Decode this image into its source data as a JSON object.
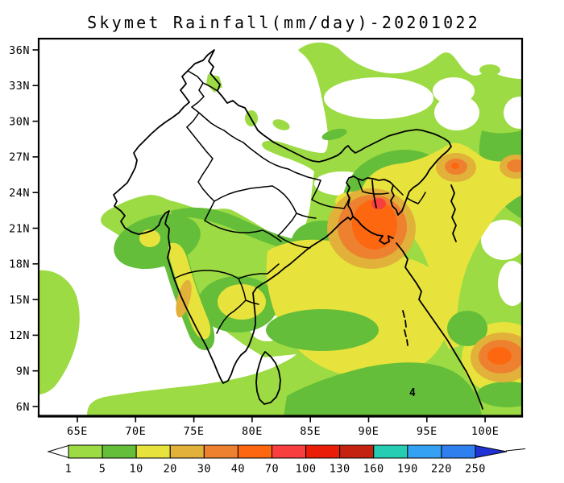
{
  "title": "Skymet Rainfall(mm/day)-20201022",
  "map": {
    "y_axis_labels": [
      "36N",
      "33N",
      "30N",
      "27N",
      "24N",
      "21N",
      "18N",
      "15N",
      "12N",
      "9N",
      "6N"
    ],
    "x_axis_labels": [
      "65E",
      "70E",
      "75E",
      "80E",
      "85E",
      "90E",
      "95E",
      "100E"
    ],
    "contour_label": "4"
  },
  "colorbar": {
    "tick_labels": [
      "1",
      "5",
      "10",
      "20",
      "30",
      "40",
      "70",
      "100",
      "130",
      "160",
      "190",
      "220",
      "250"
    ],
    "segment_colors": [
      "#9CDB43",
      "#64BE39",
      "#E8E33C",
      "#E2B13A",
      "#EE8130",
      "#FC670F",
      "#F93E40",
      "#EA1D08",
      "#C42311",
      "#26CDB2",
      "#35A1F2",
      "#2F7FEF"
    ],
    "under_arrow_color": "#FFFFFF",
    "over_arrow_color": "#2133D5"
  },
  "palette": {
    "white": "#FFFFFF",
    "light_green": "#9CDB43",
    "green": "#64BE39",
    "yellow": "#E8E33C",
    "mustard": "#E2B13A",
    "orange": "#EE8130",
    "deep_orange": "#FC670F",
    "red_pink": "#F93E40",
    "line": "#000000"
  },
  "chart_data": {
    "type": "heatmap",
    "subtype": "filled-contour-rainfall-map",
    "title": "Skymet Rainfall(mm/day)-20201022",
    "units": "mm/day",
    "date_shown_in_title": "20201022",
    "region": "India and surrounding seas with state boundaries, Sri Lanka, Bangladesh and Myanmar coasts",
    "x_axis": {
      "label": "longitude",
      "tick_labels": [
        "65E",
        "70E",
        "75E",
        "80E",
        "85E",
        "90E",
        "95E",
        "100E"
      ],
      "approx_range_deg_east": [
        62,
        103
      ]
    },
    "y_axis": {
      "label": "latitude",
      "tick_labels": [
        "36N",
        "33N",
        "30N",
        "27N",
        "24N",
        "21N",
        "18N",
        "15N",
        "12N",
        "9N",
        "6N"
      ],
      "approx_range_deg_north": [
        5,
        37
      ]
    },
    "scale_levels_mm_per_day": [
      1,
      5,
      10,
      20,
      30,
      40,
      70,
      100,
      130,
      160,
      190,
      220,
      250
    ],
    "scale_colors": [
      "#9CDB43",
      "#64BE39",
      "#E8E33C",
      "#E2B13A",
      "#EE8130",
      "#FC670F",
      "#F93E40",
      "#EA1D08",
      "#C42311",
      "#26CDB2",
      "#35A1F2",
      "#2F7FEF"
    ],
    "legend_position": "bottom horizontal colorbar with under-range white arrow and over-range dark blue arrow",
    "grid": false,
    "notable_features": [
      {
        "area": "NW India (Rajasthan, Punjab, Kashmir, central MP)",
        "value_mm": 0,
        "note": "white, below 1 mm/day"
      },
      {
        "area": "Bangladesh / adjoining Bay of Bengal (~90E, 22N)",
        "peak_value_mm": 70,
        "note": "deep orange core 40-70 with small 70-100 patch, ringed by 30-40, 20-30 and yellow"
      },
      {
        "area": "North Myanmar (~97E, 26N)",
        "peak_value_mm": 45,
        "note": "small orange maximum inside yellow field"
      },
      {
        "area": "Far right edge (~100E, 26N)",
        "peak_value_mm": 35,
        "note": "orange patch at frame edge"
      },
      {
        "area": "SE corner sea (~100E, 10N)",
        "peak_value_mm": 55,
        "note": "orange maximum with 40-70 core"
      },
      {
        "area": "Coastal Karnataka (~74E, 14N)",
        "peak_value_mm": 25,
        "note": "narrow 20-30 strip along west coast inside yellow band"
      },
      {
        "area": "Bay of Bengal / peninsular east coast",
        "value_range_mm": [
          10,
          20
        ],
        "note": "broad yellow field"
      },
      {
        "area": "West coast belt, central India band, NE India, bottom strip",
        "value_range_mm": [
          1,
          10
        ],
        "note": "light and dark green bands"
      },
      {
        "area": "contour label 4 near (~80E, 7N)",
        "value_mm": 4,
        "note": "black contour annotation"
      }
    ]
  }
}
